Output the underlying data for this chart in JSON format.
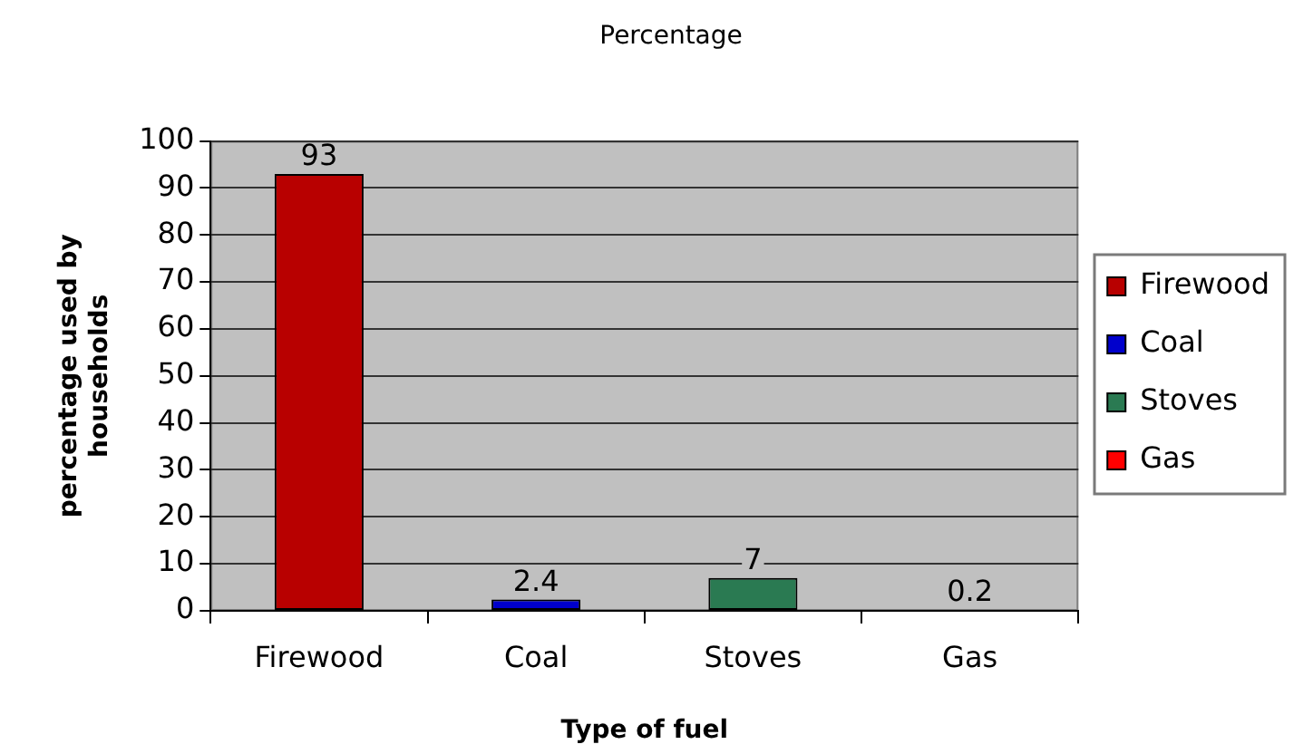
{
  "chart_data": {
    "type": "bar",
    "title": "Percentage",
    "xlabel": "Type of fuel",
    "ylabel": "percentage used by households",
    "categories": [
      "Firewood",
      "Coal",
      "Stoves",
      "Gas"
    ],
    "series": [
      {
        "name": "Firewood",
        "color": "#b80000",
        "values": [
          93,
          null,
          null,
          null
        ]
      },
      {
        "name": "Coal",
        "color": "#0000cc",
        "values": [
          null,
          2.4,
          null,
          null
        ]
      },
      {
        "name": "Stoves",
        "color": "#2a7a52",
        "values": [
          null,
          null,
          7,
          null
        ]
      },
      {
        "name": "Gas",
        "color": "#ff0000",
        "values": [
          null,
          null,
          null,
          0.2
        ]
      }
    ],
    "ylim": [
      0,
      100
    ],
    "yticks": [
      0,
      10,
      20,
      30,
      40,
      50,
      60,
      70,
      80,
      90,
      100
    ],
    "grid": "y",
    "legend": "right",
    "data_labels": true
  }
}
